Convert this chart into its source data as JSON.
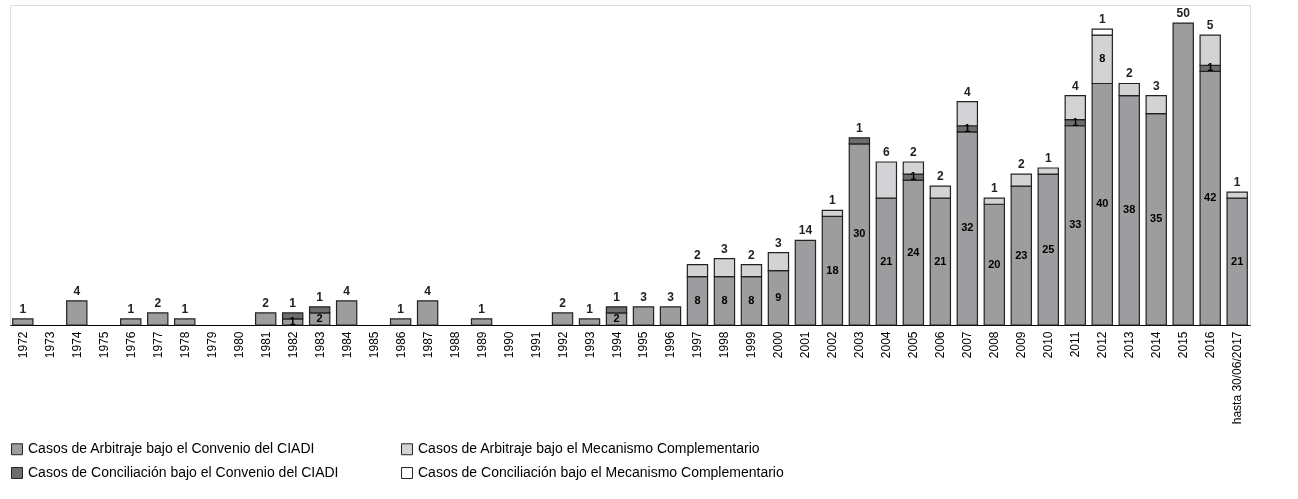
{
  "chart_data": {
    "type": "bar",
    "stacked": true,
    "data_labels": true,
    "legend": "bottom",
    "categories": [
      "1972",
      "1973",
      "1974",
      "1975",
      "1976",
      "1977",
      "1978",
      "1979",
      "1980",
      "1981",
      "1982",
      "1983",
      "1984",
      "1985",
      "1986",
      "1987",
      "1988",
      "1989",
      "1990",
      "1991",
      "1992",
      "1993",
      "1994",
      "1995",
      "1996",
      "1997",
      "1998",
      "1999",
      "2000",
      "2001",
      "2002",
      "2003",
      "2004",
      "2005",
      "2006",
      "2007",
      "2008",
      "2009",
      "2010",
      "2011",
      "2012",
      "2013",
      "2014",
      "2015",
      "2016",
      "hasta 30/06/2017"
    ],
    "series": [
      {
        "name": "Casos de Arbitraje bajo el Convenio del CIADI",
        "color": "#9d9d9f",
        "values": [
          1,
          null,
          4,
          null,
          1,
          2,
          1,
          null,
          null,
          2,
          1,
          2,
          4,
          null,
          1,
          4,
          null,
          1,
          null,
          null,
          2,
          1,
          2,
          3,
          3,
          8,
          8,
          8,
          9,
          14,
          18,
          30,
          21,
          24,
          21,
          32,
          20,
          23,
          25,
          33,
          40,
          38,
          35,
          50,
          42,
          21
        ]
      },
      {
        "name": "Casos de Conciliación bajo el Convenio del CIADI",
        "color": "#6d6d6f",
        "values": [
          null,
          null,
          null,
          null,
          null,
          null,
          null,
          null,
          null,
          null,
          1,
          1,
          null,
          null,
          null,
          null,
          null,
          null,
          null,
          null,
          null,
          null,
          1,
          null,
          null,
          null,
          null,
          null,
          null,
          null,
          null,
          1,
          null,
          1,
          null,
          1,
          null,
          null,
          null,
          1,
          null,
          null,
          null,
          null,
          1,
          null
        ]
      },
      {
        "name": "Casos de Arbitraje bajo el Mecanismo Complementario",
        "color": "#d3d3d5",
        "values": [
          null,
          null,
          null,
          null,
          null,
          null,
          null,
          null,
          null,
          null,
          null,
          null,
          null,
          null,
          null,
          null,
          null,
          null,
          null,
          null,
          null,
          null,
          null,
          null,
          null,
          2,
          3,
          2,
          3,
          null,
          1,
          null,
          6,
          2,
          2,
          4,
          1,
          2,
          1,
          4,
          8,
          2,
          3,
          null,
          5,
          1
        ]
      },
      {
        "name": "Casos de Conciliación bajo el Mecanismo Complementario",
        "color": "#ffffff",
        "values": [
          null,
          null,
          null,
          null,
          null,
          null,
          null,
          null,
          null,
          null,
          null,
          null,
          null,
          null,
          null,
          null,
          null,
          null,
          null,
          null,
          null,
          null,
          null,
          null,
          null,
          null,
          null,
          null,
          null,
          null,
          null,
          null,
          null,
          null,
          null,
          null,
          null,
          null,
          null,
          null,
          1,
          null,
          null,
          null,
          null,
          null
        ]
      }
    ]
  }
}
